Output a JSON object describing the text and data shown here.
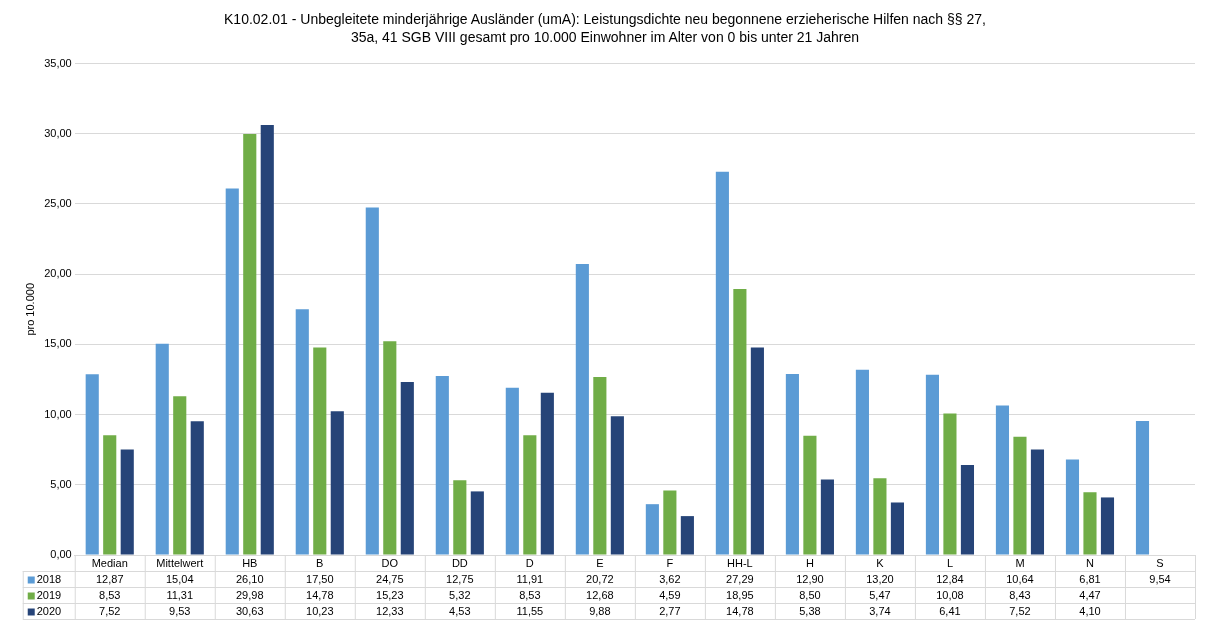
{
  "chart_data": {
    "type": "bar",
    "title": "K10.02.01 - Unbegleitete minderjährige Ausländer (umA): Leistungsdichte neu begonnene erzieherische Hilfen nach §§ 27, 35a, 41 SGB VIII gesamt pro 10.000 Einwohner im Alter von 0 bis unter 21 Jahren",
    "ylabel": "pro 10.000",
    "categories": [
      "Median",
      "Mittelwert",
      "HB",
      "B",
      "DO",
      "DD",
      "D",
      "E",
      "F",
      "HH-L",
      "H",
      "K",
      "L",
      "M",
      "N",
      "S"
    ],
    "series": [
      {
        "name": "2018",
        "color": "#5b9bd5",
        "values": [
          12.87,
          15.04,
          26.1,
          17.5,
          24.75,
          12.75,
          11.91,
          20.72,
          3.62,
          27.29,
          12.9,
          13.2,
          12.84,
          10.64,
          6.81,
          9.54
        ],
        "value_labels": [
          "12,87",
          "15,04",
          "26,10",
          "17,50",
          "24,75",
          "12,75",
          "11,91",
          "20,72",
          "3,62",
          "27,29",
          "12,90",
          "13,20",
          "12,84",
          "10,64",
          "6,81",
          "9,54"
        ]
      },
      {
        "name": "2019",
        "color": "#70ad47",
        "values": [
          8.53,
          11.31,
          29.98,
          14.78,
          15.23,
          5.32,
          8.53,
          12.68,
          4.59,
          18.95,
          8.5,
          5.47,
          10.08,
          8.43,
          4.47,
          null
        ],
        "value_labels": [
          "8,53",
          "11,31",
          "29,98",
          "14,78",
          "15,23",
          "5,32",
          "8,53",
          "12,68",
          "4,59",
          "18,95",
          "8,50",
          "5,47",
          "10,08",
          "8,43",
          "4,47",
          null
        ]
      },
      {
        "name": "2020",
        "color": "#264478",
        "values": [
          7.52,
          9.53,
          30.63,
          10.23,
          12.33,
          4.53,
          11.55,
          9.88,
          2.77,
          14.78,
          5.38,
          3.74,
          6.41,
          7.52,
          4.1,
          null
        ],
        "value_labels": [
          "7,52",
          "9,53",
          "30,63",
          "10,23",
          "12,33",
          "4,53",
          "11,55",
          "9,88",
          "2,77",
          "14,78",
          "5,38",
          "3,74",
          "6,41",
          "7,52",
          "4,10",
          null
        ]
      }
    ],
    "ylim": [
      0,
      35
    ],
    "yticks": [
      {
        "value": 0,
        "label": "0,00"
      },
      {
        "value": 5,
        "label": "5,00"
      },
      {
        "value": 10,
        "label": "10,00"
      },
      {
        "value": 15,
        "label": "15,00"
      },
      {
        "value": 20,
        "label": "20,00"
      },
      {
        "value": 25,
        "label": "25,00"
      },
      {
        "value": 30,
        "label": "30,00"
      },
      {
        "value": 35,
        "label": "35,00"
      }
    ],
    "grid": "y",
    "legend": "bottom"
  }
}
